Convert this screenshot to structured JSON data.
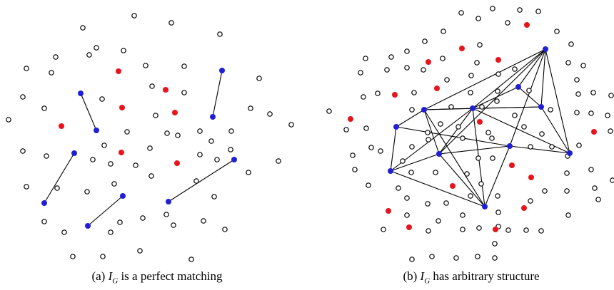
{
  "colors": {
    "open_vertex": "#000000",
    "red_vertex": "#e8141b",
    "blue_vertex": "#1f1fd6",
    "edge": "#000000"
  },
  "panels": [
    {
      "id": "a",
      "caption_prefix": "(a)",
      "caption_symbol": "I",
      "caption_subscript": "G",
      "caption_suffix": "is a perfect matching",
      "open_vertices": [
        [
          188,
          22
        ],
        [
          116,
          39
        ],
        [
          240,
          32
        ],
        [
          308,
          48
        ],
        [
          135,
          67
        ],
        [
          125,
          77
        ],
        [
          173,
          71
        ],
        [
          78,
          80
        ],
        [
          37,
          96
        ],
        [
          72,
          102
        ],
        [
          258,
          93
        ],
        [
          204,
          92
        ],
        [
          363,
          110
        ],
        [
          213,
          121
        ],
        [
          258,
          130
        ],
        [
          32,
          136
        ],
        [
          143,
          139
        ],
        [
          62,
          152
        ],
        [
          12,
          168
        ],
        [
          218,
          162
        ],
        [
          351,
          152
        ],
        [
          378,
          160
        ],
        [
          408,
          175
        ],
        [
          178,
          185
        ],
        [
          280,
          184
        ],
        [
          324,
          184
        ],
        [
          234,
          187
        ],
        [
          249,
          190
        ],
        [
          296,
          198
        ],
        [
          146,
          204
        ],
        [
          32,
          212
        ],
        [
          65,
          219
        ],
        [
          210,
          208
        ],
        [
          280,
          217
        ],
        [
          130,
          224
        ],
        [
          155,
          230
        ],
        [
          190,
          232
        ],
        [
          304,
          224
        ],
        [
          323,
          210
        ],
        [
          390,
          226
        ],
        [
          212,
          247
        ],
        [
          160,
          258
        ],
        [
          37,
          262
        ],
        [
          80,
          264
        ],
        [
          122,
          269
        ],
        [
          275,
          254
        ],
        [
          348,
          242
        ],
        [
          300,
          276
        ],
        [
          233,
          301
        ],
        [
          243,
          316
        ],
        [
          285,
          310
        ],
        [
          62,
          311
        ],
        [
          168,
          312
        ],
        [
          200,
          306
        ],
        [
          315,
          322
        ],
        [
          90,
          326
        ],
        [
          155,
          326
        ],
        [
          196,
          352
        ],
        [
          102,
          360
        ],
        [
          144,
          360
        ],
        [
          268,
          364
        ]
      ],
      "red_vertices": [
        [
          166,
          100
        ],
        [
          232,
          126
        ],
        [
          171,
          151
        ],
        [
          245,
          158
        ],
        [
          86,
          177
        ],
        [
          170,
          214
        ],
        [
          248,
          229
        ]
      ],
      "edges": [
        [
          [
            113,
            131
          ],
          [
            135,
            183
          ]
        ],
        [
          [
            311,
            99
          ],
          [
            298,
            164
          ]
        ],
        [
          [
            104,
            215
          ],
          [
            62,
            285
          ]
        ],
        [
          [
            328,
            224
          ],
          [
            236,
            283
          ]
        ],
        [
          [
            172,
            275
          ],
          [
            123,
            317
          ]
        ]
      ]
    },
    {
      "id": "b",
      "caption_prefix": "(b)",
      "caption_symbol": "I",
      "caption_subscript": "G",
      "caption_suffix": "has arbitrary structure",
      "open_vertices": [
        [
          646,
          18
        ],
        [
          690,
          12
        ],
        [
          728,
          14
        ],
        [
          754,
          16
        ],
        [
          670,
          26
        ],
        [
          711,
          32
        ],
        [
          621,
          44
        ],
        [
          780,
          44
        ],
        [
          595,
          58
        ],
        [
          672,
          63
        ],
        [
          570,
          72
        ],
        [
          800,
          62
        ],
        [
          512,
          82
        ],
        [
          548,
          80
        ],
        [
          620,
          82
        ],
        [
          668,
          88
        ],
        [
          721,
          97
        ],
        [
          796,
          88
        ],
        [
          817,
          92
        ],
        [
          505,
          102
        ],
        [
          542,
          98
        ],
        [
          570,
          95
        ],
        [
          593,
          98
        ],
        [
          626,
          112
        ],
        [
          660,
          106
        ],
        [
          698,
          104
        ],
        [
          808,
          112
        ],
        [
          529,
          131
        ],
        [
          580,
          130
        ],
        [
          659,
          130
        ],
        [
          697,
          128
        ],
        [
          831,
          130
        ],
        [
          509,
          136
        ],
        [
          461,
          156
        ],
        [
          577,
          154
        ],
        [
          632,
          150
        ],
        [
          675,
          150
        ],
        [
          696,
          142
        ],
        [
          741,
          127
        ],
        [
          810,
          132
        ],
        [
          617,
          174
        ],
        [
          642,
          178
        ],
        [
          721,
          162
        ],
        [
          734,
          178
        ],
        [
          771,
          154
        ],
        [
          808,
          158
        ],
        [
          828,
          159
        ],
        [
          485,
          182
        ],
        [
          513,
          180
        ],
        [
          599,
          186
        ],
        [
          684,
          186
        ],
        [
          759,
          188
        ],
        [
          851,
          162
        ],
        [
          856,
          134
        ],
        [
          855,
          184
        ],
        [
          577,
          206
        ],
        [
          600,
          196
        ],
        [
          648,
          194
        ],
        [
          689,
          194
        ],
        [
          743,
          206
        ],
        [
          773,
          206
        ],
        [
          811,
          204
        ],
        [
          520,
          207
        ],
        [
          494,
          218
        ],
        [
          533,
          212
        ],
        [
          564,
          226
        ],
        [
          610,
          242
        ],
        [
          654,
          244
        ],
        [
          670,
          222
        ],
        [
          690,
          222
        ],
        [
          795,
          219
        ],
        [
          828,
          238
        ],
        [
          497,
          238
        ],
        [
          674,
          258
        ],
        [
          659,
          275
        ],
        [
          697,
          275
        ],
        [
          763,
          268
        ],
        [
          794,
          243
        ],
        [
          833,
          264
        ],
        [
          516,
          260
        ],
        [
          558,
          264
        ],
        [
          576,
          242
        ],
        [
          570,
          278
        ],
        [
          599,
          286
        ],
        [
          625,
          285
        ],
        [
          648,
          302
        ],
        [
          698,
          298
        ],
        [
          743,
          282
        ],
        [
          794,
          268
        ],
        [
          838,
          280
        ],
        [
          858,
          253
        ],
        [
          537,
          322
        ],
        [
          570,
          302
        ],
        [
          600,
          324
        ],
        [
          614,
          310
        ],
        [
          648,
          322
        ],
        [
          671,
          320
        ],
        [
          698,
          318
        ],
        [
          712,
          323
        ],
        [
          737,
          323
        ],
        [
          758,
          324
        ],
        [
          796,
          302
        ],
        [
          605,
          360
        ],
        [
          577,
          364
        ],
        [
          639,
          362
        ],
        [
          669,
          360
        ],
        [
          693,
          342
        ],
        [
          693,
          362
        ]
      ],
      "red_vertices": [
        [
          738,
          35
        ],
        [
          647,
          68
        ],
        [
          600,
          87
        ],
        [
          698,
          84
        ],
        [
          553,
          133
        ],
        [
          612,
          124
        ],
        [
          491,
          167
        ],
        [
          672,
          171
        ],
        [
          832,
          185
        ],
        [
          717,
          232
        ],
        [
          744,
          249
        ],
        [
          634,
          261
        ],
        [
          544,
          296
        ],
        [
          734,
          292
        ],
        [
          573,
          319
        ],
        [
          694,
          322
        ]
      ],
      "blue_vertices": [
        [
          764,
          69
        ],
        [
          726,
          122
        ],
        [
          594,
          154
        ],
        [
          662,
          152
        ],
        [
          758,
          150
        ],
        [
          555,
          178
        ],
        [
          615,
          216
        ],
        [
          714,
          205
        ],
        [
          798,
          215
        ],
        [
          547,
          240
        ],
        [
          679,
          290
        ]
      ],
      "edges": [
        [
          [
            764,
            69
          ],
          [
            594,
            154
          ]
        ],
        [
          [
            764,
            69
          ],
          [
            662,
            152
          ]
        ],
        [
          [
            764,
            69
          ],
          [
            726,
            122
          ]
        ],
        [
          [
            764,
            69
          ],
          [
            758,
            150
          ]
        ],
        [
          [
            764,
            69
          ],
          [
            798,
            215
          ]
        ],
        [
          [
            764,
            69
          ],
          [
            714,
            205
          ]
        ],
        [
          [
            764,
            69
          ],
          [
            615,
            216
          ]
        ],
        [
          [
            594,
            154
          ],
          [
            662,
            152
          ]
        ],
        [
          [
            594,
            154
          ],
          [
            758,
            150
          ]
        ],
        [
          [
            594,
            154
          ],
          [
            555,
            178
          ]
        ],
        [
          [
            594,
            154
          ],
          [
            615,
            216
          ]
        ],
        [
          [
            594,
            154
          ],
          [
            679,
            290
          ]
        ],
        [
          [
            662,
            152
          ],
          [
            726,
            122
          ]
        ],
        [
          [
            662,
            152
          ],
          [
            758,
            150
          ]
        ],
        [
          [
            662,
            152
          ],
          [
            798,
            215
          ]
        ],
        [
          [
            662,
            152
          ],
          [
            615,
            216
          ]
        ],
        [
          [
            662,
            152
          ],
          [
            547,
            240
          ]
        ],
        [
          [
            662,
            152
          ],
          [
            679,
            290
          ]
        ],
        [
          [
            555,
            178
          ],
          [
            547,
            240
          ]
        ],
        [
          [
            555,
            178
          ],
          [
            714,
            205
          ]
        ],
        [
          [
            615,
            216
          ],
          [
            714,
            205
          ]
        ],
        [
          [
            615,
            216
          ],
          [
            679,
            290
          ]
        ],
        [
          [
            615,
            216
          ],
          [
            547,
            240
          ]
        ],
        [
          [
            714,
            205
          ],
          [
            798,
            215
          ]
        ],
        [
          [
            714,
            205
          ],
          [
            679,
            290
          ]
        ],
        [
          [
            547,
            240
          ],
          [
            679,
            290
          ]
        ],
        [
          [
            758,
            150
          ],
          [
            798,
            215
          ]
        ],
        [
          [
            726,
            122
          ],
          [
            758,
            150
          ]
        ]
      ]
    }
  ]
}
